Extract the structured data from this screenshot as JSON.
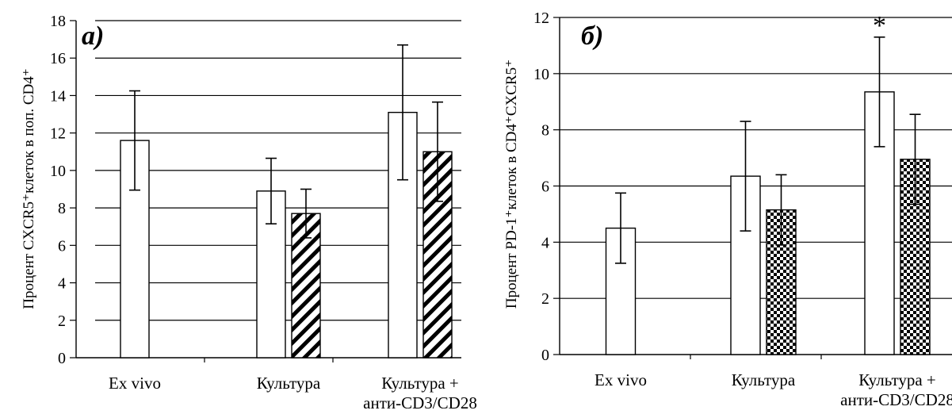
{
  "chart_data": [
    {
      "type": "bar",
      "panel_label": "а)",
      "ylabel": "Процент CXCR5⁺клеток в поп. CD4⁺",
      "ylim": [
        0,
        18
      ],
      "yticks": [
        0,
        2,
        4,
        6,
        8,
        10,
        12,
        14,
        16,
        18
      ],
      "grid": true,
      "categories": [
        {
          "lines": [
            "Ex vivo"
          ]
        },
        {
          "lines": [
            "Культура"
          ]
        },
        {
          "lines": [
            "Культура +",
            "анти-CD3/CD28"
          ]
        }
      ],
      "series": [
        {
          "pattern": "white",
          "values": [
            11.6,
            8.9,
            13.1
          ],
          "errors": [
            2.65,
            1.75,
            3.6
          ]
        },
        {
          "pattern": "hatch",
          "values": [
            null,
            7.7,
            11.0
          ],
          "errors": [
            null,
            1.3,
            2.65
          ]
        }
      ]
    },
    {
      "type": "bar",
      "panel_label": "б)",
      "ylabel": "Процент PD-1⁺клеток в CD4⁺CXCR5⁺",
      "ylim": [
        0,
        12
      ],
      "yticks": [
        0,
        2,
        4,
        6,
        8,
        10,
        12
      ],
      "grid": true,
      "annotation": "*",
      "categories": [
        {
          "lines": [
            "Ex vivo"
          ]
        },
        {
          "lines": [
            "Культура"
          ]
        },
        {
          "lines": [
            "Культура +",
            "анти-CD3/CD28"
          ]
        }
      ],
      "series": [
        {
          "pattern": "white",
          "values": [
            4.5,
            6.35,
            9.35
          ],
          "errors": [
            1.25,
            1.95,
            1.95
          ]
        },
        {
          "pattern": "checker",
          "values": [
            null,
            5.15,
            6.95
          ],
          "errors": [
            null,
            1.25,
            1.6
          ]
        }
      ]
    }
  ]
}
